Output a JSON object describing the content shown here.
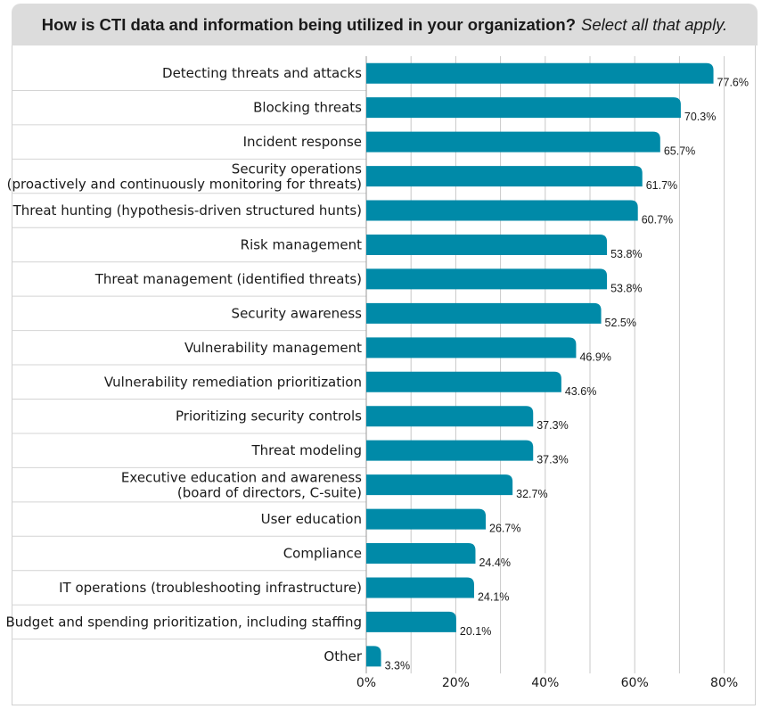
{
  "title": "How is CTI data and information being utilized in your organization?",
  "subtitle": "Select all that apply.",
  "colors": {
    "bar": "#008aa8",
    "grid": "#c8c8c8",
    "label": "#1a1a1a",
    "header_bg": "#dcdcdc"
  },
  "chart_data": {
    "type": "bar",
    "orientation": "horizontal",
    "title": "How is CTI data and information being utilized in your organization?",
    "subtitle": "Select all that apply.",
    "categories": [
      [
        "Detecting threats and attacks"
      ],
      [
        "Blocking threats"
      ],
      [
        "Incident response"
      ],
      [
        "Security operations",
        "(proactively and continuously monitoring for threats)"
      ],
      [
        "Threat hunting (hypothesis-driven structured hunts)"
      ],
      [
        "Risk management"
      ],
      [
        "Threat management (identified threats)"
      ],
      [
        "Security awareness"
      ],
      [
        "Vulnerability management"
      ],
      [
        "Vulnerability remediation prioritization"
      ],
      [
        "Prioritizing security controls"
      ],
      [
        "Threat modeling"
      ],
      [
        "Executive education and awareness",
        "(board of directors, C-suite)"
      ],
      [
        "User education"
      ],
      [
        "Compliance"
      ],
      [
        "IT operations (troubleshooting infrastructure)"
      ],
      [
        "Budget and spending prioritization, including staffing"
      ],
      [
        "Other"
      ]
    ],
    "values": [
      77.6,
      70.3,
      65.7,
      61.7,
      60.7,
      53.8,
      53.8,
      52.5,
      46.9,
      43.6,
      37.3,
      37.3,
      32.7,
      26.7,
      24.4,
      24.1,
      20.1,
      3.3
    ],
    "value_labels": [
      "77.6%",
      "70.3%",
      "65.7%",
      "61.7%",
      "60.7%",
      "53.8%",
      "53.8%",
      "52.5%",
      "46.9%",
      "43.6%",
      "37.3%",
      "37.3%",
      "32.7%",
      "26.7%",
      "24.4%",
      "24.1%",
      "20.1%",
      "3.3%"
    ],
    "xticks": [
      0,
      20,
      40,
      60,
      80
    ],
    "xtick_labels": [
      "0%",
      "20%",
      "40%",
      "60%",
      "80%"
    ],
    "xlim": [
      0,
      85
    ],
    "grid": true,
    "legend": "none"
  }
}
